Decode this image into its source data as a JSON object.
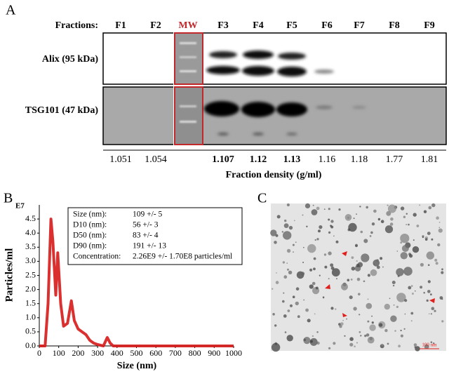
{
  "panel_labels": [
    "A",
    "B",
    "C"
  ],
  "panel_a": {
    "header": "Fractions:",
    "lanes": [
      {
        "label": "F1",
        "density": 1.051,
        "bold": false
      },
      {
        "label": "F2",
        "density": 1.054,
        "bold": false
      },
      {
        "label": "MW",
        "density": null,
        "bold": false
      },
      {
        "label": "F3",
        "density": 1.107,
        "bold": true
      },
      {
        "label": "F4",
        "density": 1.12,
        "bold": true
      },
      {
        "label": "F5",
        "density": 1.13,
        "bold": true
      },
      {
        "label": "F6",
        "density": 1.16,
        "bold": false
      },
      {
        "label": "F7",
        "density": 1.18,
        "bold": false
      },
      {
        "label": "F8",
        "density": 1.77,
        "bold": false
      },
      {
        "label": "F9",
        "density": 1.81,
        "bold": false
      }
    ],
    "rows": [
      "Alix (95 kDa)",
      "TSG101 (47 kDa)"
    ],
    "xlabel": "Fraction density (g/ml)"
  },
  "chart_data": {
    "type": "line",
    "exponent": "E7",
    "xlabel": "Size (nm)",
    "ylabel": "Particles/ml",
    "color": "#d61a1a",
    "x": [
      0,
      30,
      45,
      60,
      70,
      85,
      95,
      110,
      125,
      145,
      165,
      180,
      200,
      220,
      240,
      260,
      280,
      300,
      330,
      350,
      365,
      380,
      1000
    ],
    "values": [
      0,
      0,
      1.5,
      4.5,
      3.7,
      1.8,
      3.3,
      1.5,
      0.7,
      0.8,
      1.6,
      0.9,
      0.6,
      0.5,
      0.4,
      0.2,
      0.1,
      0.05,
      0,
      0.3,
      0.1,
      0,
      0
    ],
    "xlim": [
      0,
      1000
    ],
    "ylim": [
      0,
      5
    ],
    "xticks": [
      0,
      100,
      200,
      300,
      400,
      500,
      600,
      700,
      800,
      900,
      1000
    ],
    "yticks": [
      {
        "value": 0,
        "label": "0.0"
      },
      0.5,
      {
        "value": 1,
        "label": "1.0"
      },
      1.5,
      {
        "value": 2,
        "label": "2.0"
      },
      2.5,
      {
        "value": 3,
        "label": "3.0"
      },
      3.5,
      {
        "value": 4,
        "label": "4.0"
      },
      4.5
    ],
    "stats": [
      {
        "label": "Size (nm):",
        "value": "109 +/- 5"
      },
      {
        "label": "D10 (nm):",
        "value": "56 +/- 3"
      },
      {
        "label": "D50 (nm):",
        "value": "83 +/- 4"
      },
      {
        "label": "D90 (nm):",
        "value": "191 +/- 13"
      },
      {
        "label": "Concentration:",
        "value": "2.26E9 +/- 1.70E8  particles/ml"
      }
    ]
  },
  "panel_c": {
    "scale_bar": "100 nm"
  }
}
